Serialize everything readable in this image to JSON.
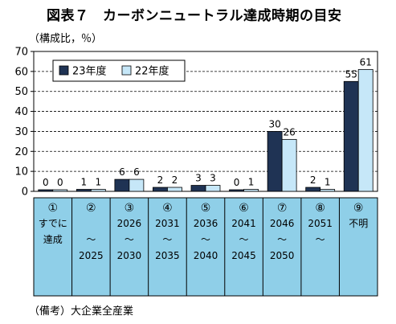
{
  "header": {
    "title": "図表７　カーボンニュートラル達成時期の目安",
    "unit": "（構成比，％）"
  },
  "footer": {
    "note": "（備考）大企業全産業"
  },
  "colors": {
    "series_23": "#1f3354",
    "series_22": "#c6e7f8",
    "category_band": "#8fcfe8"
  },
  "chart_data": {
    "type": "bar",
    "ylim": [
      0,
      70
    ],
    "yticks": [
      0,
      10,
      20,
      30,
      40,
      50,
      60,
      70
    ],
    "grid": true,
    "legend_position": "top-left",
    "categories": [
      {
        "num": "①",
        "lines": [
          "すでに",
          "達成",
          ""
        ]
      },
      {
        "num": "②",
        "lines": [
          "",
          "～",
          "2025"
        ]
      },
      {
        "num": "③",
        "lines": [
          "2026",
          "～",
          "2030"
        ]
      },
      {
        "num": "④",
        "lines": [
          "2031",
          "～",
          "2035"
        ]
      },
      {
        "num": "⑤",
        "lines": [
          "2036",
          "～",
          "2040"
        ]
      },
      {
        "num": "⑥",
        "lines": [
          "2041",
          "～",
          "2045"
        ]
      },
      {
        "num": "⑦",
        "lines": [
          "2046",
          "～",
          "2050"
        ]
      },
      {
        "num": "⑧",
        "lines": [
          "2051",
          "～",
          ""
        ]
      },
      {
        "num": "⑨",
        "lines": [
          "不明",
          "",
          ""
        ]
      }
    ],
    "series": [
      {
        "name": "23年度",
        "values": [
          0,
          1,
          6,
          2,
          3,
          0,
          30,
          2,
          55
        ]
      },
      {
        "name": "22年度",
        "values": [
          0,
          1,
          6,
          2,
          3,
          1,
          26,
          1,
          61
        ]
      }
    ]
  }
}
